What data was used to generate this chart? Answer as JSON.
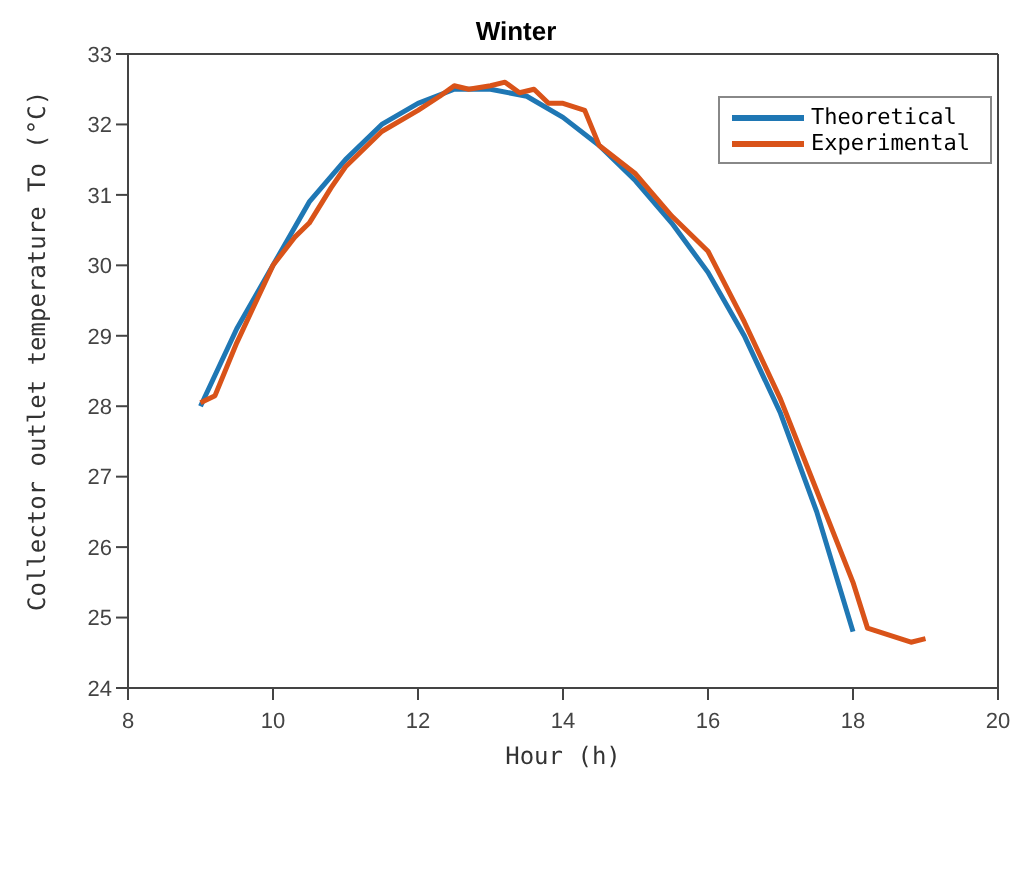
{
  "chart_data": {
    "type": "line",
    "title": "Winter",
    "xlabel": "Hour (h)",
    "ylabel": "Collector outlet temperature To (°C)",
    "xlim": [
      8,
      20
    ],
    "xticks": [
      8,
      10,
      12,
      14,
      16,
      18,
      20
    ],
    "ylim": [
      24,
      33
    ],
    "yticks": [
      24,
      25,
      26,
      27,
      28,
      29,
      30,
      31,
      32,
      33
    ],
    "legend": "top right",
    "grid": false,
    "marker": "none",
    "line_style": "solid",
    "series": [
      {
        "name": "Theoretical",
        "color": "#1f77b4",
        "x": [
          9,
          9.5,
          10,
          10.5,
          11,
          11.5,
          12,
          12.5,
          13,
          13.5,
          14,
          14.5,
          15,
          15.5,
          16,
          16.5,
          17,
          17.5,
          18
        ],
        "values": [
          28.0,
          29.1,
          30.0,
          30.9,
          31.5,
          32.0,
          32.3,
          32.5,
          32.5,
          32.4,
          32.1,
          31.7,
          31.2,
          30.6,
          29.9,
          29.0,
          27.9,
          26.5,
          24.8
        ]
      },
      {
        "name": "Experimental",
        "color": "#d95319",
        "x": [
          9,
          9.2,
          9.5,
          10,
          10.3,
          10.5,
          10.8,
          11,
          11.5,
          12,
          12.3,
          12.5,
          12.7,
          13,
          13.2,
          13.4,
          13.6,
          13.8,
          14,
          14.3,
          14.5,
          15,
          15.5,
          16,
          16.5,
          17,
          17.5,
          18,
          18.2,
          18.5,
          18.8,
          19
        ],
        "values": [
          28.05,
          28.15,
          28.9,
          30.0,
          30.4,
          30.6,
          31.1,
          31.4,
          31.9,
          32.2,
          32.4,
          32.55,
          32.5,
          32.55,
          32.6,
          32.45,
          32.5,
          32.3,
          32.3,
          32.2,
          31.7,
          31.3,
          30.7,
          30.2,
          29.2,
          28.1,
          26.8,
          25.5,
          24.85,
          24.75,
          24.65,
          24.7
        ]
      }
    ]
  }
}
